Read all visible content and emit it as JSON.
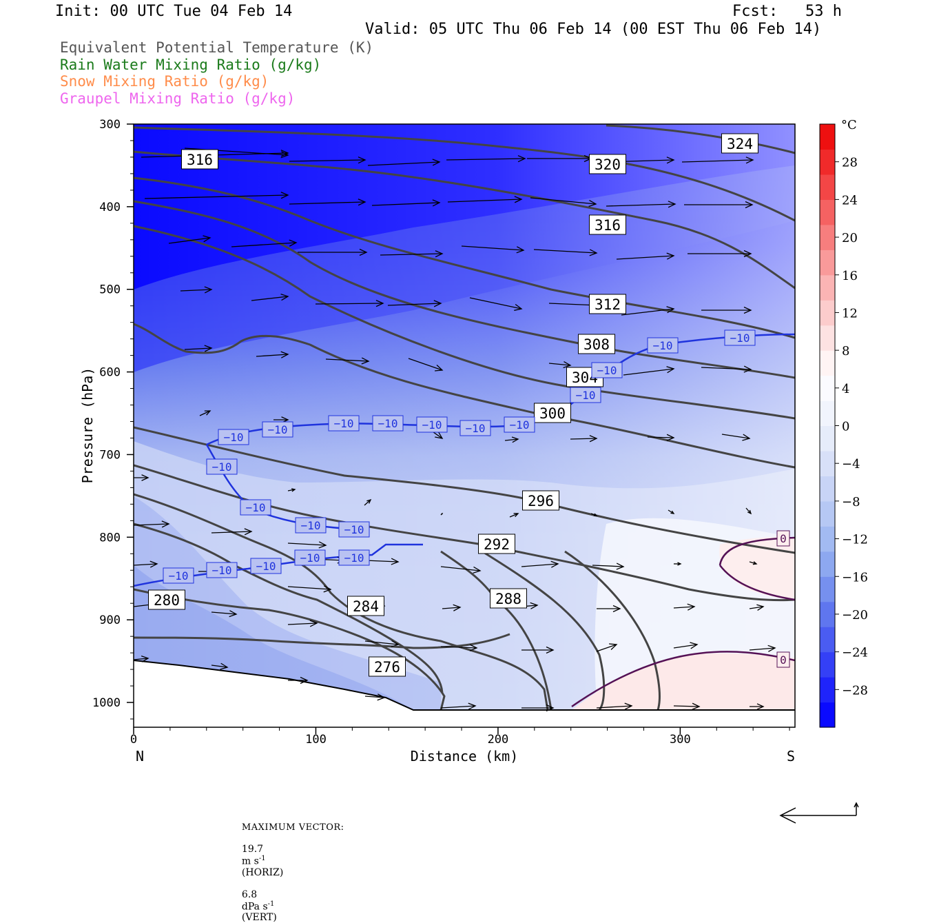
{
  "header": {
    "init": "Init: 00 UTC Tue 04 Feb 14",
    "fcst": "Fcst:   53 h",
    "valid": "Valid: 05 UTC Thu 06 Feb 14 (00 EST Thu 06 Feb 14)"
  },
  "legend": [
    {
      "label": "Equivalent Potential Temperature (K)",
      "color": "#555555"
    },
    {
      "label": "Rain Water Mixing Ratio (g/kg)",
      "color": "#1a7a1a"
    },
    {
      "label": "Snow Mixing Ratio (g/kg)",
      "color": "#ff8c4a"
    },
    {
      "label": "Graupel Mixing Ratio (g/kg)",
      "color": "#ee66ee"
    }
  ],
  "chart_data": {
    "type": "heatmap",
    "xlabel": "Distance (km)",
    "ylabel": "Pressure (hPa)",
    "x_ticks": [
      "0",
      "100",
      "200",
      "300"
    ],
    "x_end_labels": {
      "left": "N",
      "right": "S"
    },
    "y_ticks": [
      "300",
      "400",
      "500",
      "600",
      "700",
      "800",
      "900",
      "1000"
    ],
    "xlim": [
      0,
      363
    ],
    "ylim": [
      1030,
      300
    ],
    "colorbar": {
      "unit": "°C",
      "tick_labels": [
        "28",
        "24",
        "20",
        "16",
        "12",
        "8",
        "4",
        "0",
        "-4",
        "-8",
        "-12",
        "-16",
        "-20",
        "-24",
        "-28"
      ],
      "range": [
        -32,
        32
      ],
      "palette": [
        "#0a0aff",
        "#1f24fb",
        "#3440f6",
        "#4a5cf2",
        "#5f76ef",
        "#7690ef",
        "#8da8f0",
        "#a2baf2",
        "#b6c8f4",
        "#c8d4f6",
        "#d8e0f8",
        "#e6ecfa",
        "#f1f4fd",
        "#fbfbff",
        "#fff4f4",
        "#fde2e2",
        "#fccccc",
        "#fbb4b4",
        "#f99a9a",
        "#f77e7e",
        "#f56262",
        "#f34646",
        "#f02a2a",
        "#ee1010"
      ]
    },
    "theta_e_contour_labels": [
      "324",
      "320",
      "316",
      "316",
      "312",
      "308",
      "304",
      "300",
      "296",
      "292",
      "288",
      "284",
      "280",
      "276"
    ],
    "temperature_contour_labels": [
      "-10",
      "0"
    ],
    "vector_legend": {
      "prefix": "MAXIMUM VECTOR:",
      "horizontal_value": "19.7",
      "horizontal_unit": "m s",
      "horizontal_exp": "-1",
      "horizontal_tag": "(HORIZ)",
      "vertical_value": "6.8",
      "vertical_unit": "dPa s",
      "vertical_exp": "-1",
      "vertical_tag": "(VERT)"
    }
  }
}
